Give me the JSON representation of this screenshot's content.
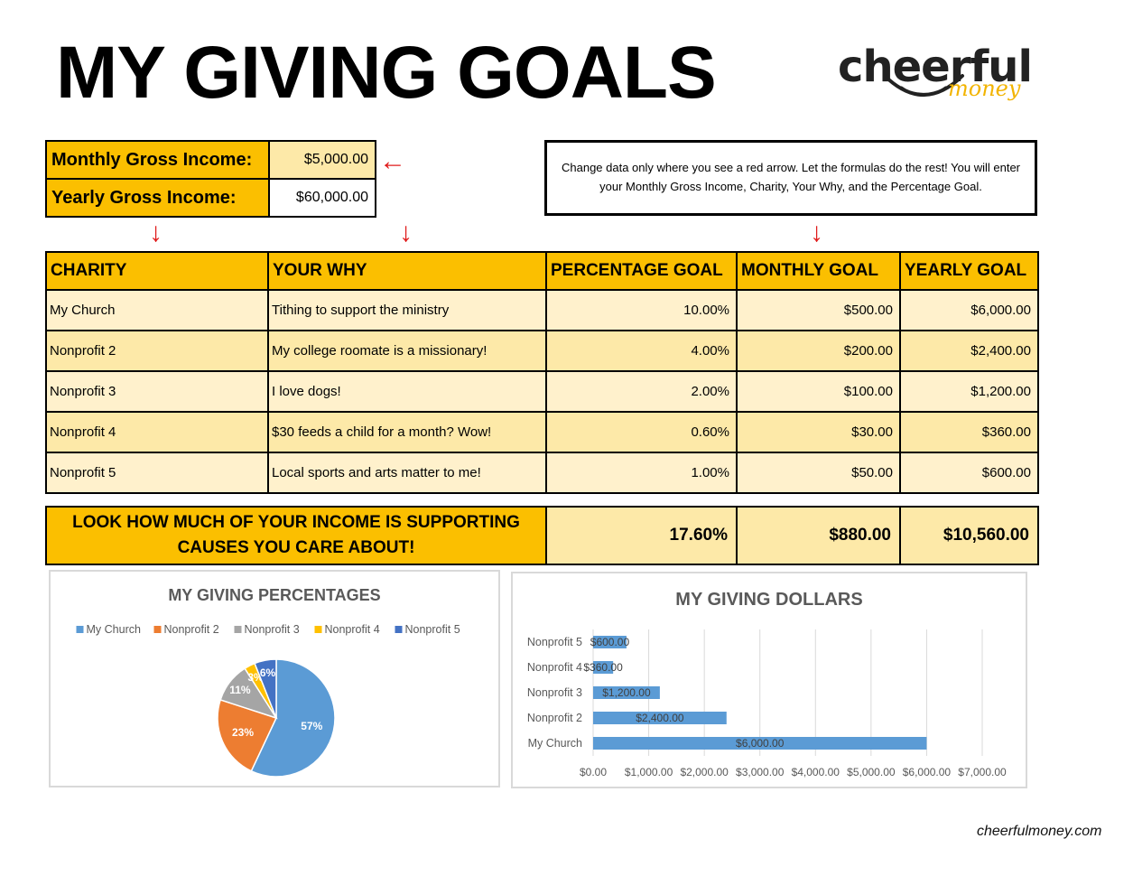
{
  "title": "MY GIVING GOALS",
  "logo": {
    "word": "cheerful",
    "sub": "money"
  },
  "income": {
    "monthly_label": "Monthly Gross Income:",
    "monthly_value": "$5,000.00",
    "yearly_label": "Yearly Gross Income:",
    "yearly_value": "$60,000.00"
  },
  "arrows": {
    "left": "←",
    "down": "↓"
  },
  "note": "Change data only where you see a red arrow.  Let the formulas do the rest! You will enter your Monthly Gross Income, Charity, Your Why, and the Percentage Goal.",
  "table": {
    "headers": [
      "CHARITY",
      "YOUR WHY",
      "PERCENTAGE GOAL",
      "MONTHLY GOAL",
      "YEARLY GOAL"
    ],
    "rows": [
      {
        "charity": "My Church",
        "why": "Tithing to support the ministry",
        "pct": "10.00%",
        "monthly": "$500.00",
        "yearly": "$6,000.00"
      },
      {
        "charity": "Nonprofit 2",
        "why": "My college roomate is a missionary!",
        "pct": "4.00%",
        "monthly": "$200.00",
        "yearly": "$2,400.00"
      },
      {
        "charity": "Nonprofit 3",
        "why": "I love dogs!",
        "pct": "2.00%",
        "monthly": "$100.00",
        "yearly": "$1,200.00"
      },
      {
        "charity": "Nonprofit 4",
        "why": "$30 feeds a child for a month?  Wow!",
        "pct": "0.60%",
        "monthly": "$30.00",
        "yearly": "$360.00"
      },
      {
        "charity": "Nonprofit 5",
        "why": "Local sports and arts matter to me!",
        "pct": "1.00%",
        "monthly": "$50.00",
        "yearly": "$600.00"
      }
    ]
  },
  "summary": {
    "label_line1": "LOOK HOW MUCH OF YOUR INCOME IS SUPPORTING",
    "label_line2": "CAUSES YOU CARE ABOUT!",
    "pct": "17.60%",
    "monthly": "$880.00",
    "yearly": "$10,560.00"
  },
  "chart_data": [
    {
      "type": "pie",
      "title": "MY GIVING PERCENTAGES",
      "categories": [
        "My Church",
        "Nonprofit 2",
        "Nonprofit 3",
        "Nonprofit 4",
        "Nonprofit 5"
      ],
      "values": [
        57,
        23,
        11,
        3,
        6
      ],
      "labels": [
        "57%",
        "23%",
        "11%",
        "3%",
        "6%"
      ],
      "colors": [
        "#5b9bd5",
        "#ed7d31",
        "#a5a5a5",
        "#ffc000",
        "#4472c4"
      ],
      "legend": "top"
    },
    {
      "type": "bar",
      "orientation": "horizontal",
      "title": "MY GIVING DOLLARS",
      "categories": [
        "Nonprofit 5",
        "Nonprofit 4",
        "Nonprofit 3",
        "Nonprofit 2",
        "My Church"
      ],
      "values": [
        600,
        360,
        1200,
        2400,
        6000
      ],
      "data_labels": [
        "$600.00",
        "$360.00",
        "$1,200.00",
        "$2,400.00",
        "$6,000.00"
      ],
      "xlim": [
        0,
        7000
      ],
      "xticks": [
        "$0.00",
        "$1,000.00",
        "$2,000.00",
        "$3,000.00",
        "$4,000.00",
        "$5,000.00",
        "$6,000.00",
        "$7,000.00"
      ],
      "color": "#5b9bd5",
      "grid": true
    }
  ],
  "footer": "cheerfulmoney.com"
}
